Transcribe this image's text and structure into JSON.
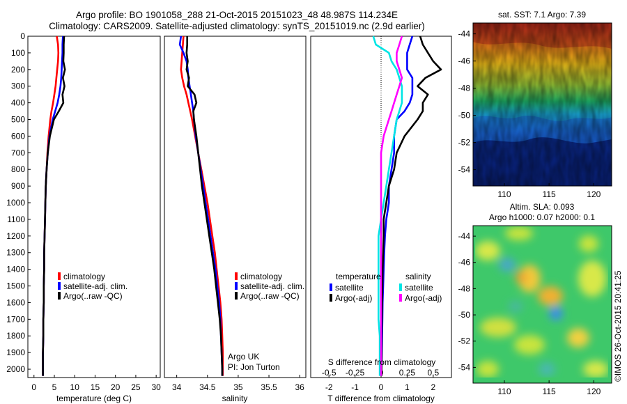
{
  "header": {
    "title_line1": "Argo profile: BO 1901058_288 21-Oct-2015 20151023_48 48.987S 114.234E",
    "title_line2": "Climatology: CARS2009. Satellite-adjusted climatology: synTS_20151019.nc (2.9d earlier)"
  },
  "credit": "©IMOS 26-Oct-2015 20:41:25",
  "colors": {
    "climatology": "#ff0000",
    "satellite": "#0000ff",
    "argo": "#000000",
    "sat_salinity": "#00e5e5",
    "argo_salinity": "#ff00ff"
  },
  "depth_axis": {
    "ylim": [
      0,
      2050
    ],
    "ticks": [
      0,
      100,
      200,
      300,
      400,
      500,
      600,
      700,
      800,
      900,
      1000,
      1100,
      1200,
      1300,
      1400,
      1500,
      1600,
      1700,
      1800,
      1900,
      2000
    ]
  },
  "chart_data": [
    {
      "type": "line",
      "name": "temperature",
      "xlabel": "temperature (deg C)",
      "xlim": [
        -1.5,
        31
      ],
      "xticks": [
        0,
        5,
        10,
        15,
        20,
        25,
        30
      ],
      "depth": [
        0,
        50,
        100,
        150,
        200,
        250,
        300,
        350,
        400,
        450,
        500,
        600,
        700,
        800,
        900,
        1000,
        1100,
        1200,
        1300,
        1400,
        1500,
        1600,
        1700,
        1800,
        1900,
        2000,
        2040
      ],
      "series": [
        {
          "name": "climatology",
          "color": "#ff0000",
          "values": [
            5.6,
            5.9,
            6.0,
            5.9,
            5.7,
            5.5,
            5.3,
            5.0,
            4.7,
            4.3,
            4.0,
            3.6,
            3.3,
            3.1,
            2.9,
            2.8,
            2.7,
            2.6,
            2.5,
            2.5,
            2.4,
            2.4,
            2.3,
            2.3,
            2.2,
            2.2,
            2.2
          ]
        },
        {
          "name": "satellite-adj. clim.",
          "color": "#0000ff",
          "values": [
            7.1,
            7.0,
            7.0,
            6.9,
            6.8,
            6.7,
            6.5,
            6.2,
            5.8,
            5.2,
            4.6,
            3.8,
            3.4,
            3.1,
            2.9,
            2.8,
            2.7,
            2.6,
            2.5,
            2.5,
            2.4,
            2.4,
            2.3,
            2.3,
            2.2,
            2.2,
            2.2
          ]
        },
        {
          "name": "Argo(..raw -QC)",
          "color": "#000000",
          "values": [
            7.4,
            7.3,
            7.3,
            7.2,
            7.6,
            7.1,
            7.5,
            7.0,
            7.2,
            6.1,
            4.9,
            3.9,
            3.4,
            3.1,
            2.9,
            2.8,
            2.7,
            2.6,
            2.5,
            2.5,
            2.4,
            2.4,
            2.3,
            2.3,
            2.2,
            2.2,
            2.2
          ]
        }
      ],
      "legend": [
        "climatology",
        "satellite-adj. clim.",
        "Argo(..raw -QC)"
      ]
    },
    {
      "type": "line",
      "name": "salinity",
      "xlabel": "salinity",
      "xlim": [
        33.8,
        36.1
      ],
      "xticks": [
        34,
        34.5,
        35,
        35.5,
        36
      ],
      "depth": [
        0,
        50,
        100,
        150,
        200,
        250,
        300,
        350,
        400,
        450,
        500,
        600,
        700,
        800,
        900,
        1000,
        1100,
        1200,
        1300,
        1400,
        1500,
        1600,
        1700,
        1800,
        1900,
        2000,
        2040
      ],
      "series": [
        {
          "name": "climatology",
          "color": "#ff0000",
          "values": [
            34.11,
            34.1,
            34.09,
            34.08,
            34.07,
            34.09,
            34.12,
            34.16,
            34.19,
            34.22,
            34.25,
            34.3,
            34.35,
            34.4,
            34.45,
            34.5,
            34.54,
            34.58,
            34.62,
            34.65,
            34.68,
            34.71,
            34.73,
            34.74,
            34.75,
            34.75,
            34.75
          ]
        },
        {
          "name": "satellite-adj. clim.",
          "color": "#0000ff",
          "values": [
            34.07,
            34.05,
            34.11,
            34.16,
            34.18,
            34.19,
            34.21,
            34.23,
            34.25,
            34.27,
            34.28,
            34.31,
            34.35,
            34.39,
            34.43,
            34.47,
            34.51,
            34.55,
            34.59,
            34.63,
            34.66,
            34.69,
            34.71,
            34.72,
            34.73,
            34.74,
            34.74
          ]
        },
        {
          "name": "Argo(..raw -QC)",
          "color": "#000000",
          "values": [
            34.17,
            34.17,
            34.16,
            34.18,
            34.16,
            34.2,
            34.18,
            34.29,
            34.32,
            34.27,
            34.28,
            34.32,
            34.35,
            34.38,
            34.41,
            34.45,
            34.49,
            34.53,
            34.57,
            34.61,
            34.64,
            34.67,
            34.7,
            34.72,
            34.73,
            34.74,
            34.74
          ]
        }
      ],
      "legend": [
        "climatology",
        "satellite-adj. clim.",
        "Argo(..raw -QC)"
      ],
      "annotation": [
        "Argo UK",
        "PI: Jon Turton"
      ]
    },
    {
      "type": "line",
      "name": "difference",
      "xlabel": "T difference from climatology",
      "xlabel_top": "S difference from climatology",
      "xlim": [
        -2.7,
        2.7
      ],
      "xticks": [
        -2,
        -1,
        0,
        1,
        2
      ],
      "xticks_top_labels": [
        "-0.5",
        "-0.25",
        "0",
        "0.25",
        "0.5"
      ],
      "xticks_top_values": [
        -2,
        -1,
        0,
        1,
        2
      ],
      "depth": [
        0,
        50,
        100,
        150,
        200,
        250,
        300,
        350,
        400,
        450,
        500,
        600,
        700,
        800,
        900,
        1000,
        1100,
        1200,
        1300,
        1400,
        1500,
        1600,
        1700,
        1800,
        1900,
        2000,
        2040
      ],
      "series": [
        {
          "name": "temperature satellite",
          "color": "#0000ff",
          "values": [
            1.2,
            1.1,
            1.0,
            1.0,
            1.0,
            1.2,
            1.2,
            1.2,
            1.1,
            0.9,
            0.6,
            0.5,
            0.5,
            0.4,
            0.3,
            0.3,
            0.2,
            0.15,
            0.12,
            0.1,
            0.08,
            0.06,
            0.05,
            0.04,
            0.03,
            0.02,
            0.02
          ]
        },
        {
          "name": "temperature Argo(-adj)",
          "color": "#000000",
          "values": [
            1.5,
            1.6,
            1.8,
            2.0,
            2.3,
            1.7,
            1.4,
            1.8,
            1.6,
            1.6,
            1.4,
            0.9,
            0.6,
            0.5,
            0.3,
            0.2,
            0.1,
            0.1,
            0.08,
            0.06,
            0.05,
            0.04,
            0.03,
            0.02,
            0.02,
            0.02,
            0.02
          ]
        },
        {
          "name": "salinity satellite",
          "color": "#00e5e5",
          "values": [
            -0.3,
            -0.2,
            0.3,
            0.4,
            0.6,
            0.7,
            0.8,
            0.8,
            0.8,
            0.7,
            0.6,
            0.5,
            0.4,
            0.3,
            0.2,
            0.1,
            0.0,
            -0.1,
            -0.1,
            -0.1,
            -0.1,
            -0.1,
            -0.1,
            -0.05,
            -0.05,
            -0.05,
            -0.05
          ]
        },
        {
          "name": "salinity Argo(-adj)",
          "color": "#ff00ff",
          "values": [
            0.8,
            0.7,
            0.6,
            0.6,
            0.7,
            0.8,
            0.7,
            0.6,
            0.5,
            0.4,
            0.3,
            0.1,
            0.0,
            0.0,
            0.0,
            0.0,
            0.0,
            0.0,
            0.0,
            0.0,
            0.0,
            0.0,
            0.0,
            0.0,
            0.0,
            0.0,
            0.0
          ]
        }
      ],
      "legend_groups": [
        {
          "title": "temperature",
          "entries": [
            {
              "label": "satellite",
              "color": "#0000ff"
            },
            {
              "label": "Argo(-adj)",
              "color": "#000000"
            }
          ]
        },
        {
          "title": "salinity",
          "entries": [
            {
              "label": "satellite",
              "color": "#00e5e5"
            },
            {
              "label": "Argo(-adj)",
              "color": "#ff00ff"
            }
          ]
        }
      ]
    },
    {
      "type": "heatmap",
      "name": "sst_map",
      "title": "sat. SST: 7.1 Argo: 7.39",
      "xticks": [
        110,
        115,
        120
      ],
      "yticks": [
        -44,
        -46,
        -48,
        -50,
        -52,
        -54
      ],
      "xlim": [
        106.5,
        122
      ],
      "ylim": [
        -55.2,
        -43.2
      ]
    },
    {
      "type": "heatmap",
      "name": "sla_map",
      "title": [
        "Altim. SLA: 0.093",
        "Argo h1000: 0.07 h2000: 0.1"
      ],
      "xticks": [
        110,
        115,
        120
      ],
      "yticks": [
        -44,
        -46,
        -48,
        -50,
        -52,
        -54
      ],
      "xlim": [
        106.5,
        122
      ],
      "ylim": [
        -55.2,
        -43.2
      ]
    }
  ]
}
